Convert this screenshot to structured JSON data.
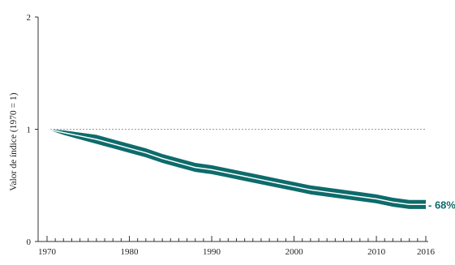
{
  "chart_data": {
    "type": "area",
    "title": "",
    "xlabel": "",
    "ylabel": "Valor de índice (1970 = 1)",
    "xlim": [
      1970,
      2016
    ],
    "ylim": [
      0,
      2
    ],
    "x_ticks": [
      "1970",
      "1980",
      "1990",
      "2000",
      "2010",
      "2016"
    ],
    "y_ticks": [
      "0",
      "1",
      "2"
    ],
    "reference_line": 1,
    "end_label": "- 68%",
    "colors": {
      "band": "#0e6b6b",
      "line": "#ffffff",
      "reference": "#9a9a9a",
      "end_label": "#0e6b6b"
    },
    "series": [
      {
        "x": [
          1970,
          1972,
          1974,
          1976,
          1978,
          1980,
          1982,
          1984,
          1986,
          1988,
          1990,
          1992,
          1994,
          1996,
          1998,
          2000,
          2002,
          2004,
          2006,
          2008,
          2010,
          2012,
          2014,
          2016
        ],
        "values": [
          1.0,
          0.97,
          0.94,
          0.91,
          0.87,
          0.83,
          0.79,
          0.74,
          0.7,
          0.66,
          0.64,
          0.61,
          0.58,
          0.55,
          0.52,
          0.49,
          0.46,
          0.44,
          0.42,
          0.4,
          0.38,
          0.35,
          0.33,
          0.33
        ],
        "lower": [
          1.0,
          0.95,
          0.91,
          0.87,
          0.83,
          0.79,
          0.75,
          0.7,
          0.66,
          0.62,
          0.6,
          0.57,
          0.54,
          0.51,
          0.48,
          0.45,
          0.42,
          0.4,
          0.38,
          0.36,
          0.34,
          0.31,
          0.29,
          0.29
        ],
        "upper": [
          1.0,
          0.99,
          0.97,
          0.95,
          0.91,
          0.87,
          0.83,
          0.78,
          0.74,
          0.7,
          0.68,
          0.65,
          0.62,
          0.59,
          0.56,
          0.53,
          0.5,
          0.48,
          0.46,
          0.44,
          0.42,
          0.39,
          0.37,
          0.37
        ]
      }
    ]
  }
}
